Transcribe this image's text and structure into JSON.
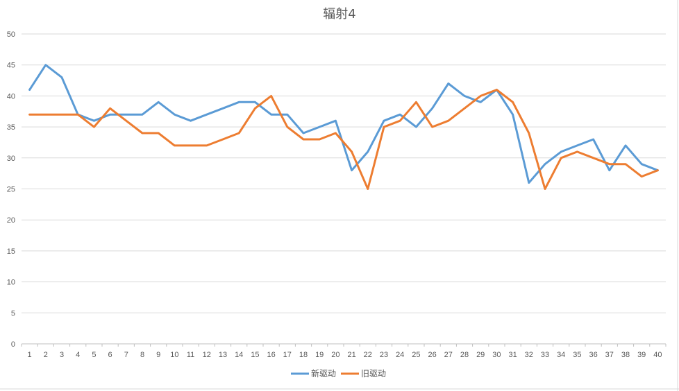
{
  "chart_data": {
    "type": "line",
    "title": "辐射4",
    "xlabel": "",
    "ylabel": "",
    "ylim": [
      0,
      50
    ],
    "yticks": [
      0,
      5,
      10,
      15,
      20,
      25,
      30,
      35,
      40,
      45,
      50
    ],
    "grid": true,
    "legend_position": "bottom",
    "x": [
      1,
      2,
      3,
      4,
      5,
      6,
      7,
      8,
      9,
      10,
      11,
      12,
      13,
      14,
      15,
      16,
      17,
      18,
      19,
      20,
      21,
      22,
      23,
      24,
      25,
      26,
      27,
      28,
      29,
      30,
      31,
      32,
      33,
      34,
      35,
      36,
      37,
      38,
      39,
      40
    ],
    "series": [
      {
        "name": "新驱动",
        "color": "#5b9bd5",
        "values": [
          41,
          45,
          43,
          37,
          36,
          37,
          37,
          37,
          39,
          37,
          36,
          37,
          38,
          39,
          39,
          37,
          37,
          34,
          35,
          36,
          28,
          31,
          36,
          37,
          35,
          38,
          42,
          40,
          39,
          41,
          37,
          26,
          29,
          31,
          32,
          33,
          28,
          32,
          29,
          28
        ]
      },
      {
        "name": "旧驱动",
        "color": "#ed7d31",
        "values": [
          37,
          37,
          37,
          37,
          35,
          38,
          36,
          34,
          34,
          32,
          32,
          32,
          33,
          34,
          38,
          40,
          35,
          33,
          33,
          34,
          31,
          25,
          35,
          36,
          39,
          35,
          36,
          38,
          40,
          41,
          39,
          34,
          25,
          30,
          31,
          30,
          29,
          29,
          27,
          28
        ]
      }
    ]
  }
}
